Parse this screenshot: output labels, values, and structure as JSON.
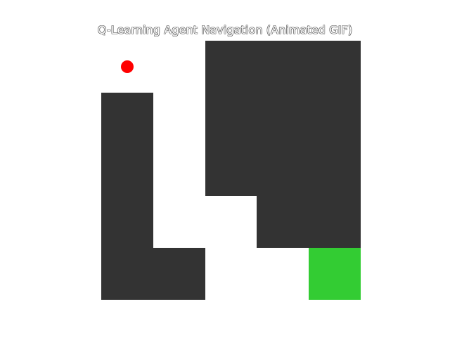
{
  "title": "Q-Learning Agent Navigation (Animated GIF)",
  "grid": {
    "rows": 5,
    "cols": 5,
    "cells": [
      [
        "free",
        "free",
        "wall",
        "wall",
        "wall"
      ],
      [
        "wall",
        "free",
        "wall",
        "wall",
        "wall"
      ],
      [
        "wall",
        "free",
        "wall",
        "wall",
        "wall"
      ],
      [
        "wall",
        "free",
        "free",
        "wall",
        "wall"
      ],
      [
        "wall",
        "wall",
        "free",
        "free",
        "goal"
      ]
    ]
  },
  "agent": {
    "row": 0,
    "col": 0,
    "color": "#ff0000",
    "icon": "agent-dot-icon"
  },
  "goal": {
    "row": 4,
    "col": 4,
    "color": "#33cc33"
  },
  "colors": {
    "wall": "#333333",
    "free": "#ffffff",
    "goal": "#33cc33",
    "agent": "#ff0000"
  }
}
